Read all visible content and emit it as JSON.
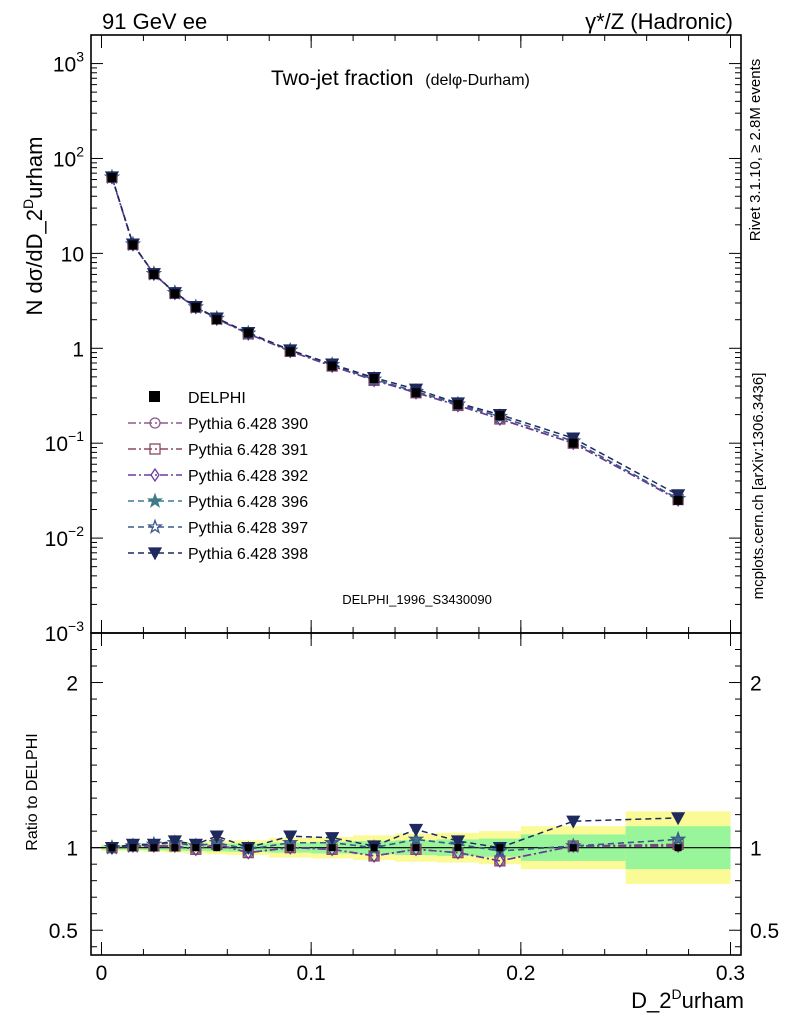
{
  "header": {
    "left": "91 GeV ee",
    "right": "γ*/Z (Hadronic)"
  },
  "side_labels": {
    "rivet": "Rivet 3.1.10, ≥ 2.8M events",
    "mcplots": "mcplots.cern.ch [arXiv:1306.3436]"
  },
  "chart_data": [
    {
      "type": "line",
      "panel": "main",
      "title": "Two-jet fraction",
      "title_sub": "(delφ-Durham)",
      "watermark": "DELPHI_1996_S3430090",
      "ylabel": "N dσ/dD_2",
      "ylabel_sup": "D",
      "ylabel_tail": "urham",
      "yscale": "log",
      "ylim": [
        0.001,
        2000
      ],
      "xlim": [
        -0.005,
        0.305
      ],
      "ytick_labels": [
        {
          "value": 1000,
          "base": "10",
          "exp": "3"
        },
        {
          "value": 100,
          "base": "10",
          "exp": "2"
        },
        {
          "value": 10,
          "base": "10",
          "exp": ""
        },
        {
          "value": 1,
          "base": "1",
          "exp": ""
        },
        {
          "value": 0.1,
          "base": "10",
          "exp": "−1"
        },
        {
          "value": 0.01,
          "base": "10",
          "exp": "−2"
        },
        {
          "value": 0.001,
          "base": "10",
          "exp": "−3"
        }
      ],
      "x": [
        0.005,
        0.015,
        0.025,
        0.035,
        0.045,
        0.055,
        0.07,
        0.09,
        0.11,
        0.13,
        0.15,
        0.17,
        0.19,
        0.225,
        0.275
      ],
      "data_series": {
        "name": "DELPHI",
        "values": [
          63,
          12.3,
          6.0,
          3.75,
          2.7,
          2.0,
          1.45,
          0.92,
          0.65,
          0.48,
          0.34,
          0.255,
          0.195,
          0.1,
          0.025
        ]
      },
      "series": [
        {
          "name": "Pythia 6.428 390",
          "color": "#8e5a8a",
          "marker": "circle-open",
          "dash": "dashdot",
          "values": [
            63.2,
            12.4,
            6.1,
            3.8,
            2.7,
            2.04,
            1.42,
            0.93,
            0.65,
            0.46,
            0.34,
            0.25,
            0.18,
            0.1,
            0.0255
          ]
        },
        {
          "name": "Pythia 6.428 391",
          "color": "#8a4a5a",
          "marker": "square-open",
          "dash": "dashdot",
          "values": [
            63.2,
            12.4,
            6.1,
            3.8,
            2.7,
            2.04,
            1.42,
            0.93,
            0.65,
            0.46,
            0.34,
            0.25,
            0.18,
            0.1,
            0.0255
          ]
        },
        {
          "name": "Pythia 6.428 392",
          "color": "#6a3aa0",
          "marker": "diamond-open",
          "dash": "dashdot",
          "values": [
            63.2,
            12.4,
            6.1,
            3.8,
            2.7,
            2.04,
            1.42,
            0.93,
            0.65,
            0.46,
            0.34,
            0.25,
            0.18,
            0.1,
            0.0253
          ]
        },
        {
          "name": "Pythia 6.428 396",
          "color": "#3f7a8a",
          "marker": "star-filled",
          "dash": "dashed",
          "values": [
            63.5,
            12.5,
            6.1,
            3.85,
            2.72,
            2.06,
            1.44,
            0.95,
            0.67,
            0.47,
            0.35,
            0.257,
            0.19,
            0.105,
            0.026
          ]
        },
        {
          "name": "Pythia 6.428 397",
          "color": "#3a5a8a",
          "marker": "star-open",
          "dash": "dashed",
          "values": [
            63.5,
            12.5,
            6.1,
            3.85,
            2.72,
            2.06,
            1.44,
            0.95,
            0.67,
            0.47,
            0.35,
            0.257,
            0.19,
            0.105,
            0.026
          ]
        },
        {
          "name": "Pythia 6.428 398",
          "color": "#1e2a5e",
          "marker": "triangle-down-filled",
          "dash": "dashed",
          "values": [
            63.8,
            12.5,
            6.1,
            3.85,
            2.75,
            2.08,
            1.46,
            0.96,
            0.68,
            0.49,
            0.37,
            0.265,
            0.2,
            0.113,
            0.0285
          ]
        }
      ],
      "legend": {
        "placement": "center-left"
      }
    },
    {
      "type": "line",
      "panel": "ratio",
      "ylabel": "Ratio to DELPHI",
      "xlabel": "D_2",
      "xlabel_sup": "D",
      "xlabel_tail": "urham",
      "ylim": [
        0.35,
        2.3
      ],
      "xlim": [
        -0.005,
        0.305
      ],
      "yticks": [
        0.5,
        1,
        2
      ],
      "ytick_labels": [
        "0.5",
        "1",
        "2"
      ],
      "xticks": [
        0,
        0.1,
        0.2,
        0.3
      ],
      "xtick_labels": [
        "0",
        "0.1",
        "0.2",
        "0.3"
      ],
      "x_edges": [
        0.0,
        0.01,
        0.02,
        0.03,
        0.04,
        0.05,
        0.06,
        0.08,
        0.1,
        0.12,
        0.14,
        0.16,
        0.18,
        0.2,
        0.25,
        0.3
      ],
      "band_inner": [
        0.012,
        0.012,
        0.015,
        0.018,
        0.02,
        0.022,
        0.025,
        0.03,
        0.035,
        0.04,
        0.045,
        0.05,
        0.055,
        0.08,
        0.13
      ],
      "band_outer": [
        0.02,
        0.02,
        0.025,
        0.03,
        0.035,
        0.04,
        0.045,
        0.06,
        0.065,
        0.075,
        0.085,
        0.09,
        0.1,
        0.13,
        0.22
      ],
      "band_colors": {
        "inner": "#99f599",
        "outer": "#fafa96"
      },
      "x": [
        0.005,
        0.015,
        0.025,
        0.035,
        0.045,
        0.055,
        0.07,
        0.09,
        0.11,
        0.13,
        0.15,
        0.17,
        0.19,
        0.225,
        0.275
      ],
      "series": [
        {
          "name": "Pythia 6.428 390",
          "values": [
            1.0,
            1.01,
            1.01,
            1.01,
            0.99,
            1.02,
            0.97,
            1.0,
            0.99,
            0.95,
            0.99,
            0.97,
            0.92,
            1.01,
            1.01
          ]
        },
        {
          "name": "Pythia 6.428 391",
          "values": [
            1.0,
            1.01,
            1.01,
            1.01,
            0.99,
            1.02,
            0.97,
            1.0,
            0.99,
            0.95,
            0.99,
            0.97,
            0.92,
            1.01,
            1.02
          ]
        },
        {
          "name": "Pythia 6.428 392",
          "values": [
            1.0,
            1.01,
            1.01,
            1.01,
            0.99,
            1.02,
            0.97,
            1.0,
            0.99,
            0.95,
            0.99,
            0.97,
            0.92,
            1.01,
            1.01
          ]
        },
        {
          "name": "Pythia 6.428 396",
          "values": [
            1.0,
            1.01,
            1.02,
            1.03,
            1.01,
            1.03,
            0.99,
            1.03,
            1.03,
            1.0,
            1.05,
            1.02,
            0.98,
            1.01,
            1.05
          ]
        },
        {
          "name": "Pythia 6.428 397",
          "values": [
            1.0,
            1.01,
            1.02,
            1.03,
            1.01,
            1.03,
            0.99,
            1.03,
            1.03,
            1.0,
            1.05,
            1.02,
            0.98,
            1.01,
            1.05
          ]
        },
        {
          "name": "Pythia 6.428 398",
          "values": [
            1.0,
            1.02,
            1.02,
            1.04,
            1.02,
            1.07,
            1.0,
            1.07,
            1.06,
            1.01,
            1.11,
            1.04,
            1.0,
            1.16,
            1.18
          ]
        }
      ]
    }
  ]
}
